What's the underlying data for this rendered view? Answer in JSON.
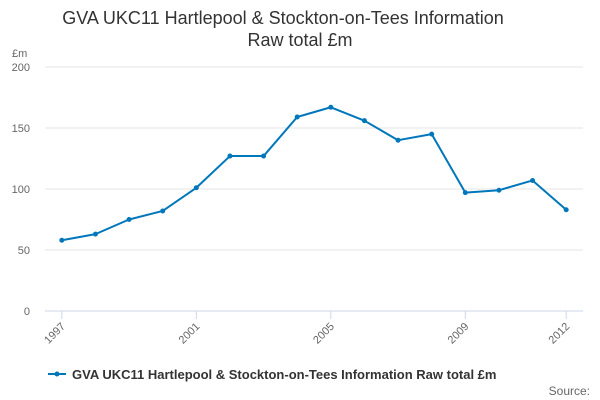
{
  "chart_data": {
    "type": "line",
    "title": "GVA UKC11 Hartlepool & Stockton-on-Tees Information",
    "subtitle": "Raw total £m",
    "y_unit": "£m",
    "x": [
      1997,
      1998,
      1999,
      2000,
      2001,
      2002,
      2003,
      2004,
      2005,
      2006,
      2007,
      2008,
      2009,
      2010,
      2011,
      2012
    ],
    "x_tick_labels": [
      "1997",
      "2001",
      "2005",
      "2009",
      "2012"
    ],
    "x_tick_values": [
      1997,
      2001,
      2005,
      2009,
      2012
    ],
    "series": [
      {
        "name": "GVA UKC11 Hartlepool & Stockton-on-Tees Information Raw total £m",
        "color": "#0077bb",
        "values": [
          58,
          63,
          75,
          82,
          101,
          127,
          127,
          159,
          167,
          156,
          140,
          145,
          97,
          99,
          107,
          83
        ]
      }
    ],
    "ylim": [
      0,
      200
    ],
    "y_ticks": [
      0,
      50,
      100,
      150,
      200
    ],
    "grid": true,
    "legend_position": "bottom"
  },
  "source_label": "Source:"
}
